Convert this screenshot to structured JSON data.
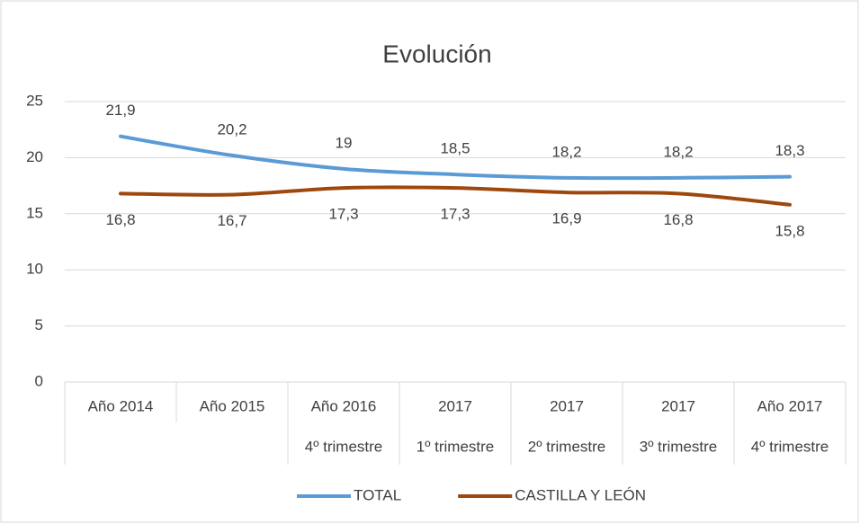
{
  "chart_data": {
    "type": "line",
    "title": "Evolución",
    "categories": [
      "Año 2014",
      "Año 2015",
      "Año 2016",
      "2017",
      "2017",
      "2017",
      "Año 2017"
    ],
    "sub_categories": [
      null,
      null,
      "4º trimestre",
      "1º trimestre",
      "2º trimestre",
      "3º trimestre",
      "4º trimestre"
    ],
    "series": [
      {
        "name": "TOTAL",
        "color": "#5b9bd5",
        "values": [
          21.9,
          20.2,
          19,
          18.5,
          18.2,
          18.2,
          18.3
        ],
        "value_labels": [
          "21,9",
          "20,2",
          "19",
          "18,5",
          "18,2",
          "18,2",
          "18,3"
        ]
      },
      {
        "name": "CASTILLA Y LEÓN",
        "color": "#9e480e",
        "values": [
          16.8,
          16.7,
          17.3,
          17.3,
          16.9,
          16.8,
          15.8
        ],
        "value_labels": [
          "16,8",
          "16,7",
          "17,3",
          "17,3",
          "16,9",
          "16,8",
          "15,8"
        ]
      }
    ],
    "ylim": [
      0,
      25
    ],
    "yticks": [
      0,
      5,
      10,
      15,
      20,
      25
    ],
    "grid": true,
    "legend": "bottom"
  }
}
